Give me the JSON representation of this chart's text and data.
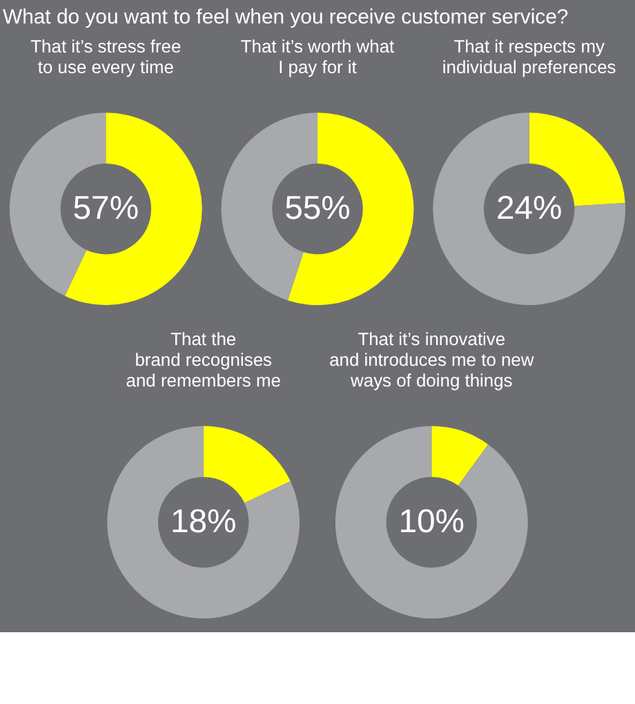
{
  "chart_data": [
    {
      "type": "donut",
      "title": "That it’s stress free\nto use every time",
      "annotations": [
        "What do you want to feel when you receive customer service?"
      ],
      "categories": [
        null,
        null
      ],
      "values": [
        57,
        43
      ],
      "colors": [
        "#ffff00",
        "#a7a9ac"
      ],
      "value_labels": [
        "57%",
        null
      ]
    },
    {
      "type": "donut",
      "title": "That it’s worth what\nI pay for it",
      "categories": [
        null,
        null
      ],
      "values": [
        55,
        45
      ],
      "colors": [
        "#ffff00",
        "#a7a9ac"
      ],
      "value_labels": [
        "55%",
        null
      ]
    },
    {
      "type": "donut",
      "title": "That it respects my\nindividual preferences",
      "categories": [
        null,
        null
      ],
      "values": [
        24,
        76
      ],
      "colors": [
        "#ffff00",
        "#a7a9ac"
      ],
      "value_labels": [
        "24%",
        null
      ]
    },
    {
      "type": "donut",
      "title": "That the\nbrand recognises\nand remembers me",
      "categories": [
        null,
        null
      ],
      "values": [
        18,
        82
      ],
      "colors": [
        "#ffff00",
        "#a7a9ac"
      ],
      "value_labels": [
        "18%",
        null
      ]
    },
    {
      "type": "donut",
      "title": "That it’s innovative\nand introduces me to new\nways of doing things",
      "categories": [
        null,
        null
      ],
      "values": [
        10,
        90
      ],
      "colors": [
        "#ffff00",
        "#a7a9ac"
      ],
      "value_labels": [
        "10%",
        null
      ]
    }
  ]
}
